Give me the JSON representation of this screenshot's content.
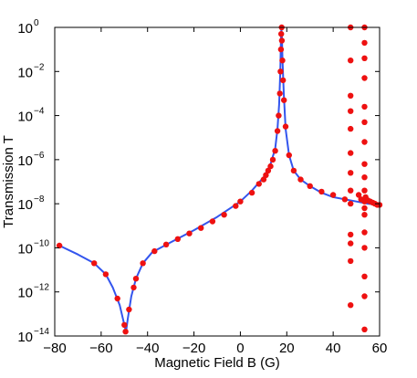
{
  "chart_data": {
    "type": "scatter",
    "title": "",
    "xlabel": "Magnetic Field B (G)",
    "ylabel": "Transmission T",
    "xlim": [
      -80,
      60
    ],
    "ylim_log10": [
      -14,
      0
    ],
    "yscale": "log",
    "x_ticks": [
      "-80",
      "-60",
      "-40",
      "-20",
      "0",
      "20",
      "40",
      "60"
    ],
    "y_tick_base": "10",
    "y_tick_exponents": [
      "0",
      "-2",
      "-4",
      "-6",
      "-8",
      "-10",
      "-12",
      "-14"
    ],
    "grid": false,
    "legend": "none",
    "colors": {
      "line": "#3355ee",
      "points": "#ee1111",
      "axis": "#000000"
    },
    "series": [
      {
        "kind": "line",
        "points": [
          [
            -78,
            -9.9
          ],
          [
            -70,
            -10.3
          ],
          [
            -63,
            -10.7
          ],
          [
            -58,
            -11.2
          ],
          [
            -55,
            -11.8
          ],
          [
            -52,
            -12.6
          ],
          [
            -50,
            -13.5
          ],
          [
            -49.3,
            -13.8
          ],
          [
            -48.5,
            -13.2
          ],
          [
            -47,
            -12.2
          ],
          [
            -45,
            -11.4
          ],
          [
            -42,
            -10.7
          ],
          [
            -38,
            -10.2
          ],
          [
            -30,
            -9.75
          ],
          [
            -20,
            -9.2
          ],
          [
            -10,
            -8.6
          ],
          [
            0,
            -7.9
          ],
          [
            5,
            -7.4
          ],
          [
            10,
            -6.8
          ],
          [
            13,
            -6.2
          ],
          [
            15,
            -5.5
          ],
          [
            16,
            -4.6
          ],
          [
            16.7,
            -3.5
          ],
          [
            17.2,
            -2.0
          ],
          [
            17.5,
            -0.5
          ],
          [
            17.7,
            -0.1
          ],
          [
            17.9,
            -0.4
          ],
          [
            18.2,
            -1.6
          ],
          [
            18.7,
            -3.0
          ],
          [
            19.5,
            -4.6
          ],
          [
            21,
            -5.8
          ],
          [
            23,
            -6.5
          ],
          [
            26,
            -6.9
          ],
          [
            30,
            -7.2
          ],
          [
            35,
            -7.5
          ],
          [
            40,
            -7.7
          ],
          [
            45,
            -7.8
          ],
          [
            50,
            -7.9
          ],
          [
            55,
            -8.0
          ],
          [
            60,
            -8.05
          ]
        ]
      },
      {
        "kind": "scatter",
        "points": [
          [
            -78,
            -9.9
          ],
          [
            -63,
            -10.7
          ],
          [
            -58,
            -11.2
          ],
          [
            -53,
            -12.3
          ],
          [
            -50,
            -13.5
          ],
          [
            -49.5,
            -13.8
          ],
          [
            -48,
            -12.8
          ],
          [
            -46,
            -11.8
          ],
          [
            -45,
            -11.4
          ],
          [
            -42,
            -10.7
          ],
          [
            -37,
            -10.15
          ],
          [
            -32,
            -9.85
          ],
          [
            -27,
            -9.6
          ],
          [
            -22,
            -9.35
          ],
          [
            -17,
            -9.1
          ],
          [
            -12,
            -8.8
          ],
          [
            -7,
            -8.5
          ],
          [
            -2,
            -8.1
          ],
          [
            0,
            -7.9
          ],
          [
            5,
            -7.5
          ],
          [
            8,
            -7.1
          ],
          [
            10,
            -6.9
          ],
          [
            11,
            -6.7
          ],
          [
            12,
            -6.5
          ],
          [
            13,
            -6.3
          ],
          [
            14,
            -6.0
          ],
          [
            15,
            -5.6
          ],
          [
            16,
            -4.7
          ],
          [
            16.5,
            -4.0
          ],
          [
            17,
            -3.0
          ],
          [
            17.3,
            -2.0
          ],
          [
            17.5,
            -1.0
          ],
          [
            17.6,
            -0.3
          ],
          [
            17.8,
            0.0
          ],
          [
            17.9,
            -0.6
          ],
          [
            18.1,
            -1.5
          ],
          [
            18.4,
            -2.4
          ],
          [
            18.8,
            -3.3
          ],
          [
            19.5,
            -4.5
          ],
          [
            21,
            -5.8
          ],
          [
            23,
            -6.5
          ],
          [
            26,
            -6.9
          ],
          [
            30,
            -7.2
          ],
          [
            35,
            -7.45
          ],
          [
            40,
            -7.6
          ],
          [
            45,
            -7.8
          ],
          [
            47.5,
            0.0
          ],
          [
            47.5,
            -1.5
          ],
          [
            47.5,
            -3.1
          ],
          [
            47.5,
            -3.8
          ],
          [
            47.5,
            -4.6
          ],
          [
            47.5,
            -5.7
          ],
          [
            47.5,
            -6.6
          ],
          [
            47.5,
            -7.4
          ],
          [
            47.5,
            -8.0
          ],
          [
            47.5,
            -9.4
          ],
          [
            47.5,
            -9.8
          ],
          [
            47.5,
            -10.6
          ],
          [
            47.5,
            -12.6
          ],
          [
            53.5,
            0.0
          ],
          [
            53.5,
            -0.7
          ],
          [
            53.5,
            -1.4
          ],
          [
            53.5,
            -2.3
          ],
          [
            53.5,
            -3.6
          ],
          [
            53.5,
            -4.3
          ],
          [
            53.5,
            -5.2
          ],
          [
            53.5,
            -6.2
          ],
          [
            53.5,
            -6.8
          ],
          [
            53.5,
            -7.4
          ],
          [
            53.5,
            -7.9
          ],
          [
            53.5,
            -8.2
          ],
          [
            53.5,
            -8.5
          ],
          [
            53.5,
            -9.3
          ],
          [
            53.5,
            -10.0
          ],
          [
            53.5,
            -11.3
          ],
          [
            53.5,
            -12.2
          ],
          [
            53.5,
            -13.7
          ],
          [
            51,
            -7.6
          ],
          [
            52,
            -7.8
          ],
          [
            54,
            -7.7
          ],
          [
            55,
            -7.85
          ],
          [
            56,
            -7.9
          ],
          [
            57,
            -7.95
          ],
          [
            58,
            -8.0
          ],
          [
            59,
            -8.05
          ],
          [
            60,
            -8.05
          ]
        ]
      }
    ]
  }
}
